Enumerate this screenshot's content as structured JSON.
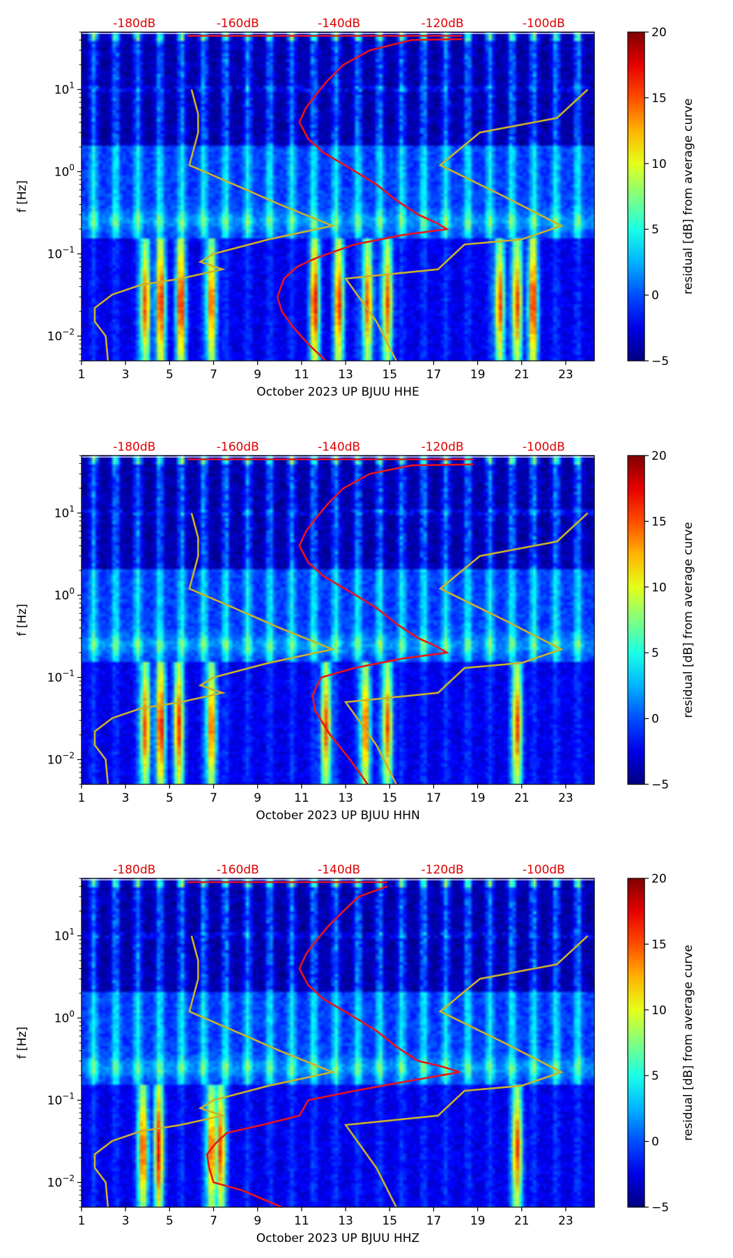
{
  "colors": {
    "red_curve": "#e8141c",
    "gold_curve": "#c9b22a",
    "top_label": "#e00000"
  },
  "colormap": "jet",
  "chart_data": [
    {
      "type": "heatmap",
      "channel": "HHE",
      "xlabel": "October 2023 UP BJUU  HHE",
      "ylabel": "f [Hz]",
      "x_range": [
        1,
        24.3
      ],
      "x_ticks": [
        1,
        3,
        5,
        7,
        9,
        11,
        13,
        15,
        17,
        19,
        21,
        23
      ],
      "y_scale": "log",
      "y_range": [
        0.005,
        50
      ],
      "y_ticks": [
        {
          "value": 0.01,
          "base": "10",
          "exp": "−2"
        },
        {
          "value": 0.1,
          "base": "10",
          "exp": "−1"
        },
        {
          "value": 1,
          "base": "10",
          "exp": "0"
        },
        {
          "value": 10,
          "base": "10",
          "exp": "1"
        }
      ],
      "top_axis": {
        "labels": [
          "-180dB",
          "-160dB",
          "-140dB",
          "-120dB",
          "-100dB"
        ],
        "positions": [
          3.4,
          8.1,
          12.7,
          17.4,
          22.0
        ]
      },
      "colorbar": {
        "label": "residual [dB] from average curve",
        "range": [
          -5,
          20
        ],
        "ticks": [
          -5,
          0,
          5,
          10,
          15,
          20
        ]
      },
      "red_curve": [
        [
          12.1,
          0.005
        ],
        [
          11.3,
          0.008
        ],
        [
          10.6,
          0.013
        ],
        [
          10.1,
          0.02
        ],
        [
          9.9,
          0.03
        ],
        [
          10.2,
          0.05
        ],
        [
          10.8,
          0.07
        ],
        [
          11.7,
          0.09
        ],
        [
          13.4,
          0.13
        ],
        [
          15.6,
          0.17
        ],
        [
          17.6,
          0.2
        ],
        [
          17.1,
          0.24
        ],
        [
          16.3,
          0.3
        ],
        [
          15.3,
          0.45
        ],
        [
          14.4,
          0.7
        ],
        [
          13.2,
          1.1
        ],
        [
          12.0,
          1.7
        ],
        [
          11.3,
          2.5
        ],
        [
          10.9,
          4
        ],
        [
          11.2,
          6
        ],
        [
          11.7,
          9
        ],
        [
          12.2,
          13
        ],
        [
          12.9,
          20
        ],
        [
          14.1,
          30
        ],
        [
          16.0,
          40
        ],
        [
          18.3,
          41
        ]
      ],
      "gold_curve_left": [
        [
          2.2,
          0.005
        ],
        [
          2.1,
          0.01
        ],
        [
          1.6,
          0.015
        ],
        [
          1.6,
          0.022
        ],
        [
          2.4,
          0.032
        ],
        [
          3.7,
          0.042
        ],
        [
          5.5,
          0.05
        ],
        [
          7.4,
          0.065
        ],
        [
          6.4,
          0.08
        ],
        [
          7.0,
          0.1
        ],
        [
          9.5,
          0.15
        ],
        [
          12.4,
          0.22
        ],
        [
          10.0,
          0.4
        ],
        [
          8.5,
          0.6
        ],
        [
          5.9,
          1.2
        ],
        [
          6.3,
          3
        ],
        [
          6.3,
          5
        ],
        [
          6.0,
          10
        ]
      ],
      "gold_curve_right": [
        [
          15.3,
          0.005
        ],
        [
          14.4,
          0.015
        ],
        [
          13.0,
          0.05
        ],
        [
          17.2,
          0.065
        ],
        [
          18.4,
          0.13
        ],
        [
          21.0,
          0.15
        ],
        [
          22.8,
          0.22
        ],
        [
          20.2,
          0.5
        ],
        [
          17.3,
          1.2
        ],
        [
          19.1,
          3
        ],
        [
          22.6,
          4.5
        ],
        [
          24.0,
          10
        ]
      ],
      "hot_days": [
        3.9,
        4.6,
        5.5,
        6.9,
        11.6,
        12.7,
        14.0,
        14.9,
        20.0,
        20.8,
        21.5
      ]
    },
    {
      "type": "heatmap",
      "channel": "HHN",
      "xlabel": "October 2023 UP BJUU  HHN",
      "ylabel": "f [Hz]",
      "x_range": [
        1,
        24.3
      ],
      "x_ticks": [
        1,
        3,
        5,
        7,
        9,
        11,
        13,
        15,
        17,
        19,
        21,
        23
      ],
      "y_scale": "log",
      "y_range": [
        0.005,
        50
      ],
      "y_ticks": [
        {
          "value": 0.01,
          "base": "10",
          "exp": "−2"
        },
        {
          "value": 0.1,
          "base": "10",
          "exp": "−1"
        },
        {
          "value": 1,
          "base": "10",
          "exp": "0"
        },
        {
          "value": 10,
          "base": "10",
          "exp": "1"
        }
      ],
      "top_axis": {
        "labels": [
          "-180dB",
          "-160dB",
          "-140dB",
          "-120dB",
          "-100dB"
        ],
        "positions": [
          3.4,
          8.1,
          12.7,
          17.4,
          22.0
        ]
      },
      "colorbar": {
        "label": "residual [dB] from average curve",
        "range": [
          -5,
          20
        ],
        "ticks": [
          -5,
          0,
          5,
          10,
          15,
          20
        ]
      },
      "red_curve": [
        [
          14.0,
          0.005
        ],
        [
          13.2,
          0.01
        ],
        [
          12.3,
          0.02
        ],
        [
          11.6,
          0.04
        ],
        [
          11.5,
          0.06
        ],
        [
          11.7,
          0.08
        ],
        [
          11.9,
          0.1
        ],
        [
          13.4,
          0.13
        ],
        [
          15.6,
          0.17
        ],
        [
          17.6,
          0.2
        ],
        [
          17.1,
          0.24
        ],
        [
          16.3,
          0.3
        ],
        [
          15.3,
          0.45
        ],
        [
          14.4,
          0.7
        ],
        [
          13.2,
          1.1
        ],
        [
          12.0,
          1.7
        ],
        [
          11.3,
          2.5
        ],
        [
          10.9,
          4
        ],
        [
          11.2,
          6
        ],
        [
          11.7,
          9
        ],
        [
          12.2,
          13
        ],
        [
          12.9,
          20
        ],
        [
          14.1,
          30
        ],
        [
          16.0,
          38
        ],
        [
          18.8,
          39
        ]
      ],
      "gold_curve_left": [
        [
          2.2,
          0.005
        ],
        [
          2.1,
          0.01
        ],
        [
          1.6,
          0.015
        ],
        [
          1.6,
          0.022
        ],
        [
          2.4,
          0.032
        ],
        [
          3.7,
          0.042
        ],
        [
          5.5,
          0.05
        ],
        [
          7.4,
          0.065
        ],
        [
          6.4,
          0.08
        ],
        [
          7.0,
          0.1
        ],
        [
          9.5,
          0.15
        ],
        [
          12.4,
          0.22
        ],
        [
          10.0,
          0.4
        ],
        [
          8.5,
          0.6
        ],
        [
          5.9,
          1.2
        ],
        [
          6.3,
          3
        ],
        [
          6.3,
          5
        ],
        [
          6.0,
          10
        ]
      ],
      "gold_curve_right": [
        [
          15.3,
          0.005
        ],
        [
          14.4,
          0.015
        ],
        [
          13.0,
          0.05
        ],
        [
          17.2,
          0.065
        ],
        [
          18.4,
          0.13
        ],
        [
          21.0,
          0.15
        ],
        [
          22.8,
          0.22
        ],
        [
          20.2,
          0.5
        ],
        [
          17.3,
          1.2
        ],
        [
          19.1,
          3
        ],
        [
          22.6,
          4.5
        ],
        [
          24.0,
          10
        ]
      ],
      "hot_days": [
        3.9,
        4.6,
        5.4,
        6.9,
        12.1,
        13.9,
        14.9,
        20.8
      ]
    },
    {
      "type": "heatmap",
      "channel": "HHZ",
      "xlabel": "October 2023 UP BJUU  HHZ",
      "ylabel": "f [Hz]",
      "x_range": [
        1,
        24.3
      ],
      "x_ticks": [
        1,
        3,
        5,
        7,
        9,
        11,
        13,
        15,
        17,
        19,
        21,
        23
      ],
      "y_scale": "log",
      "y_range": [
        0.005,
        50
      ],
      "y_ticks": [
        {
          "value": 0.01,
          "base": "10",
          "exp": "−2"
        },
        {
          "value": 0.1,
          "base": "10",
          "exp": "−1"
        },
        {
          "value": 1,
          "base": "10",
          "exp": "0"
        },
        {
          "value": 10,
          "base": "10",
          "exp": "1"
        }
      ],
      "top_axis": {
        "labels": [
          "-180dB",
          "-160dB",
          "-140dB",
          "-120dB",
          "-100dB"
        ],
        "positions": [
          3.4,
          8.1,
          12.7,
          17.4,
          22.0
        ]
      },
      "colorbar": {
        "label": "residual [dB] from average curve",
        "range": [
          -5,
          20
        ],
        "ticks": [
          -5,
          0,
          5,
          10,
          15,
          20
        ]
      },
      "red_curve": [
        [
          10.1,
          0.005
        ],
        [
          8.3,
          0.008
        ],
        [
          7.0,
          0.01
        ],
        [
          6.8,
          0.015
        ],
        [
          6.7,
          0.022
        ],
        [
          7.1,
          0.03
        ],
        [
          7.6,
          0.04
        ],
        [
          9.2,
          0.05
        ],
        [
          10.9,
          0.065
        ],
        [
          11.3,
          0.1
        ],
        [
          13.4,
          0.13
        ],
        [
          15.8,
          0.17
        ],
        [
          18.2,
          0.22
        ],
        [
          17.3,
          0.26
        ],
        [
          16.3,
          0.3
        ],
        [
          15.3,
          0.45
        ],
        [
          14.4,
          0.7
        ],
        [
          13.2,
          1.1
        ],
        [
          12.0,
          1.7
        ],
        [
          11.3,
          2.5
        ],
        [
          10.9,
          4
        ],
        [
          11.2,
          6
        ],
        [
          11.7,
          9
        ],
        [
          12.2,
          13
        ],
        [
          12.9,
          20
        ],
        [
          13.6,
          30
        ],
        [
          14.9,
          40
        ]
      ],
      "gold_curve_left": [
        [
          2.2,
          0.005
        ],
        [
          2.1,
          0.01
        ],
        [
          1.6,
          0.015
        ],
        [
          1.6,
          0.022
        ],
        [
          2.4,
          0.032
        ],
        [
          3.7,
          0.042
        ],
        [
          5.5,
          0.05
        ],
        [
          7.4,
          0.065
        ],
        [
          6.4,
          0.08
        ],
        [
          7.0,
          0.1
        ],
        [
          9.5,
          0.15
        ],
        [
          12.4,
          0.22
        ],
        [
          10.0,
          0.4
        ],
        [
          8.5,
          0.6
        ],
        [
          5.9,
          1.2
        ],
        [
          6.3,
          3
        ],
        [
          6.3,
          5
        ],
        [
          6.0,
          10
        ]
      ],
      "gold_curve_right": [
        [
          15.3,
          0.005
        ],
        [
          14.4,
          0.015
        ],
        [
          13.0,
          0.05
        ],
        [
          17.2,
          0.065
        ],
        [
          18.4,
          0.13
        ],
        [
          21.0,
          0.15
        ],
        [
          22.8,
          0.22
        ],
        [
          20.2,
          0.5
        ],
        [
          17.3,
          1.2
        ],
        [
          19.1,
          3
        ],
        [
          22.6,
          4.5
        ],
        [
          24.0,
          10
        ]
      ],
      "hot_days": [
        3.8,
        4.5,
        6.9,
        7.3,
        20.8
      ]
    }
  ]
}
